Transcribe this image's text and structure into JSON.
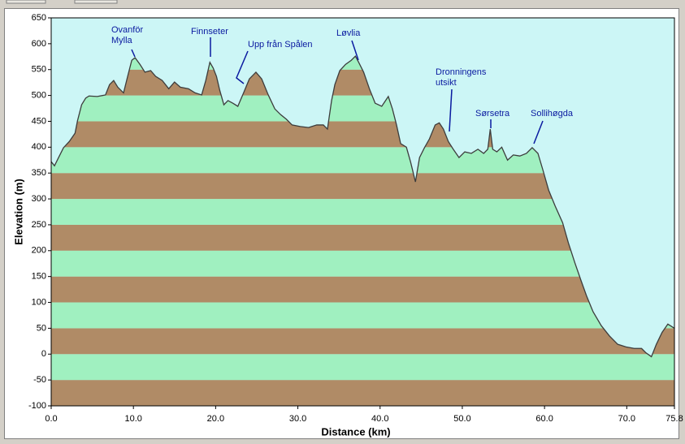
{
  "chart_data": {
    "type": "area",
    "x_label": "Distance (km)",
    "y_label": "Elevation (m)",
    "x": [
      0,
      0.4,
      0.9,
      1.5,
      2.2,
      2.9,
      3.2,
      3.7,
      4.2,
      4.6,
      5.6,
      6.6,
      7.1,
      7.6,
      8.1,
      8.8,
      9.3,
      9.8,
      10.2,
      10.8,
      11.4,
      12.1,
      12.7,
      13.5,
      14.3,
      15.0,
      15.7,
      16.7,
      17.5,
      18.3,
      18.8,
      19.3,
      19.7,
      20.1,
      20.5,
      21.0,
      21.5,
      22.1,
      22.7,
      23.4,
      24.1,
      24.9,
      25.6,
      26.4,
      27.2,
      27.9,
      28.6,
      29.3,
      30.3,
      31.3,
      32.3,
      33.1,
      33.6,
      34.1,
      34.5,
      35.1,
      35.8,
      36.5,
      37.0,
      37.4,
      38.0,
      38.7,
      39.4,
      40.2,
      41.0,
      41.5,
      42.0,
      42.5,
      43.2,
      43.7,
      44.3,
      44.8,
      45.4,
      46.0,
      46.7,
      47.2,
      47.7,
      48.3,
      48.9,
      49.6,
      50.3,
      51.1,
      51.9,
      52.6,
      53.1,
      53.4,
      53.7,
      54.2,
      54.8,
      55.5,
      56.2,
      57.0,
      57.8,
      58.5,
      59.2,
      59.8,
      60.5,
      61.3,
      62.2,
      62.9,
      63.7,
      64.4,
      65.1,
      65.9,
      66.9,
      67.9,
      68.9,
      69.9,
      70.9,
      71.8,
      72.3,
      73.0,
      73.6,
      74.3,
      75.0,
      75.8
    ],
    "values": [
      372,
      364,
      380,
      399,
      411,
      427,
      451,
      482,
      495,
      499,
      498,
      501,
      521,
      529,
      516,
      505,
      537,
      568,
      573,
      560,
      545,
      548,
      537,
      529,
      513,
      526,
      516,
      513,
      505,
      501,
      529,
      564,
      553,
      537,
      510,
      482,
      490,
      485,
      479,
      505,
      532,
      545,
      532,
      501,
      474,
      463,
      454,
      443,
      440,
      438,
      443,
      443,
      435,
      490,
      521,
      548,
      560,
      568,
      576,
      564,
      545,
      513,
      485,
      479,
      498,
      474,
      443,
      407,
      400,
      372,
      333,
      380,
      399,
      416,
      443,
      447,
      435,
      411,
      396,
      380,
      391,
      388,
      396,
      388,
      396,
      435,
      396,
      391,
      400,
      375,
      385,
      383,
      388,
      399,
      388,
      356,
      317,
      286,
      254,
      215,
      176,
      144,
      113,
      82,
      55,
      35,
      19,
      14,
      11,
      11,
      3,
      -5,
      19,
      42,
      58,
      50
    ],
    "line_color": "#3c3c3c",
    "band_colors": [
      "#b08b66",
      "#a0f0c0"
    ],
    "background": "#ccf6f6",
    "xlim": [
      0,
      75.8
    ],
    "xticks": [
      {
        "value": 0,
        "label": "0.0"
      },
      {
        "value": 10,
        "label": "10.0"
      },
      {
        "value": 20,
        "label": "20.0"
      },
      {
        "value": 30,
        "label": "30.0"
      },
      {
        "value": 40,
        "label": "40.0"
      },
      {
        "value": 50,
        "label": "50.0"
      },
      {
        "value": 60,
        "label": "60.0"
      },
      {
        "value": 70,
        "label": "70.0"
      },
      {
        "value": 75.8,
        "label": "75.8"
      }
    ],
    "ylim": [
      -100,
      650
    ],
    "yticks": [
      -100,
      -50,
      0,
      50,
      100,
      150,
      200,
      250,
      300,
      350,
      400,
      450,
      500,
      550,
      600,
      650
    ],
    "annotations": [
      "Ovanför Mylla",
      "Finnseter",
      "Upp från Spålen",
      "Løvlia",
      "Dronningens utsikt",
      "Sørsetra",
      "Sollihøgda"
    ],
    "annotation_color": "#0a1aa0"
  }
}
